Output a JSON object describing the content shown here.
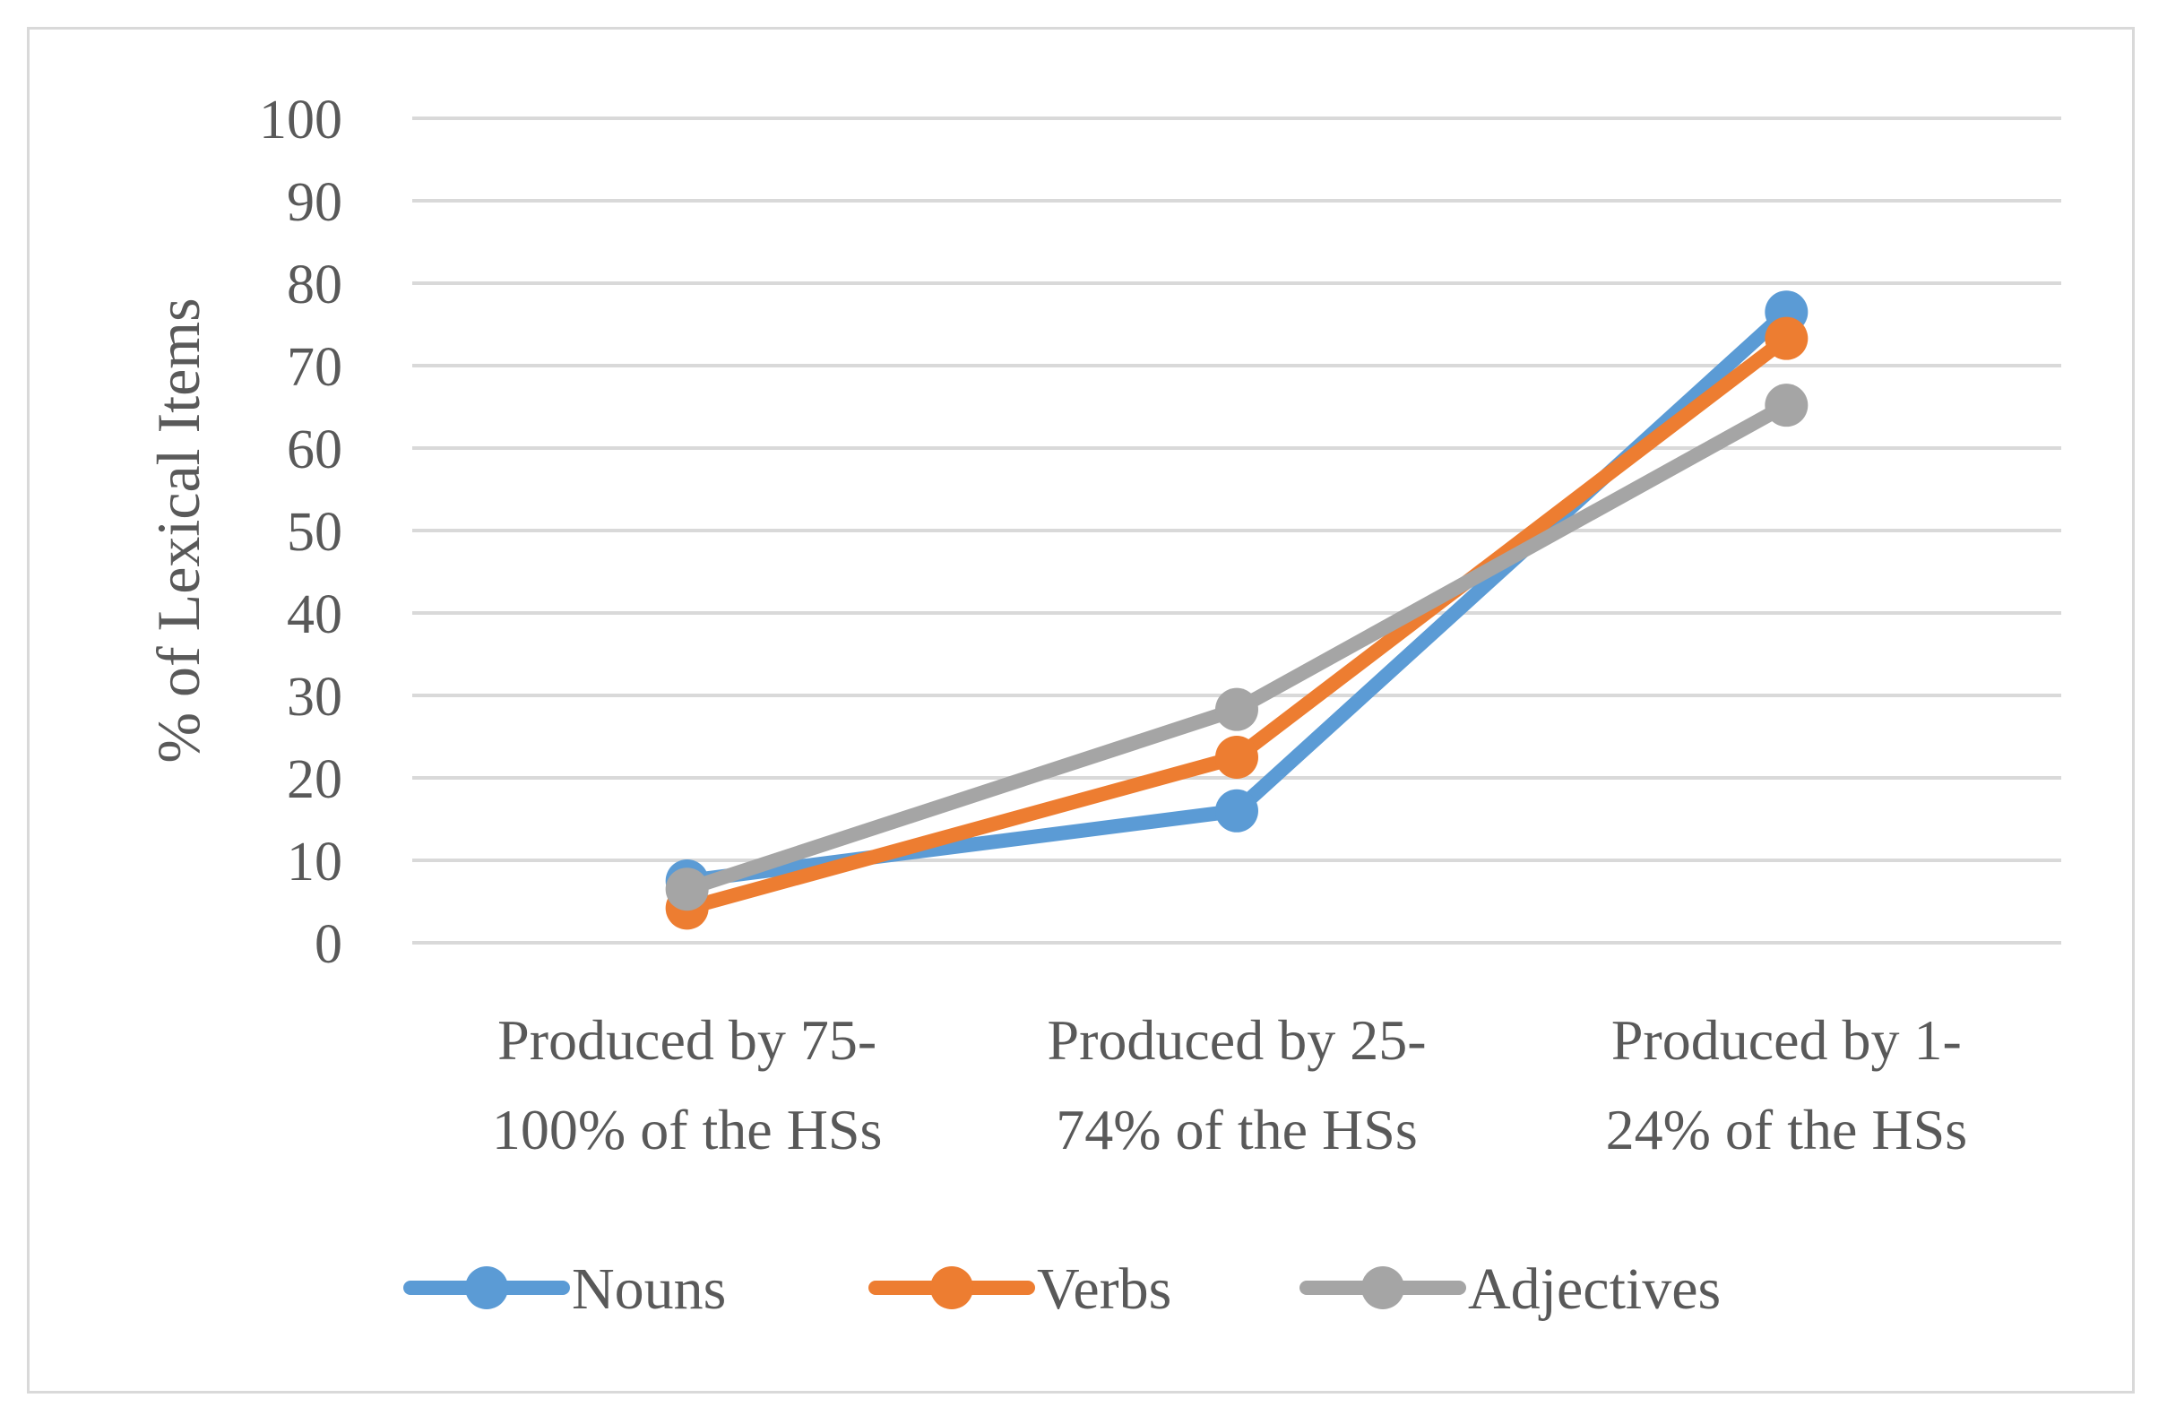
{
  "chart_data": {
    "type": "line",
    "title": "",
    "xlabel": "",
    "ylabel": "% of Lexical Items",
    "ylim": [
      0,
      100
    ],
    "yticks": [
      0,
      10,
      20,
      30,
      40,
      50,
      60,
      70,
      80,
      90,
      100
    ],
    "grid": true,
    "legend_position": "bottom",
    "categories": [
      [
        "Produced by 75-",
        "100% of the HSs"
      ],
      [
        "Produced by 25-",
        "74% of the HSs"
      ],
      [
        "Produced by 1-",
        "24% of the HSs"
      ]
    ],
    "series": [
      {
        "name": "Nouns",
        "color": "#5b9bd5",
        "values": [
          7.5,
          16,
          76.5
        ]
      },
      {
        "name": "Verbs",
        "color": "#ed7d31",
        "values": [
          4.2,
          22.5,
          73.3
        ]
      },
      {
        "name": "Adjectives",
        "color": "#a5a5a5",
        "values": [
          6.5,
          28.3,
          65.2
        ]
      }
    ]
  }
}
